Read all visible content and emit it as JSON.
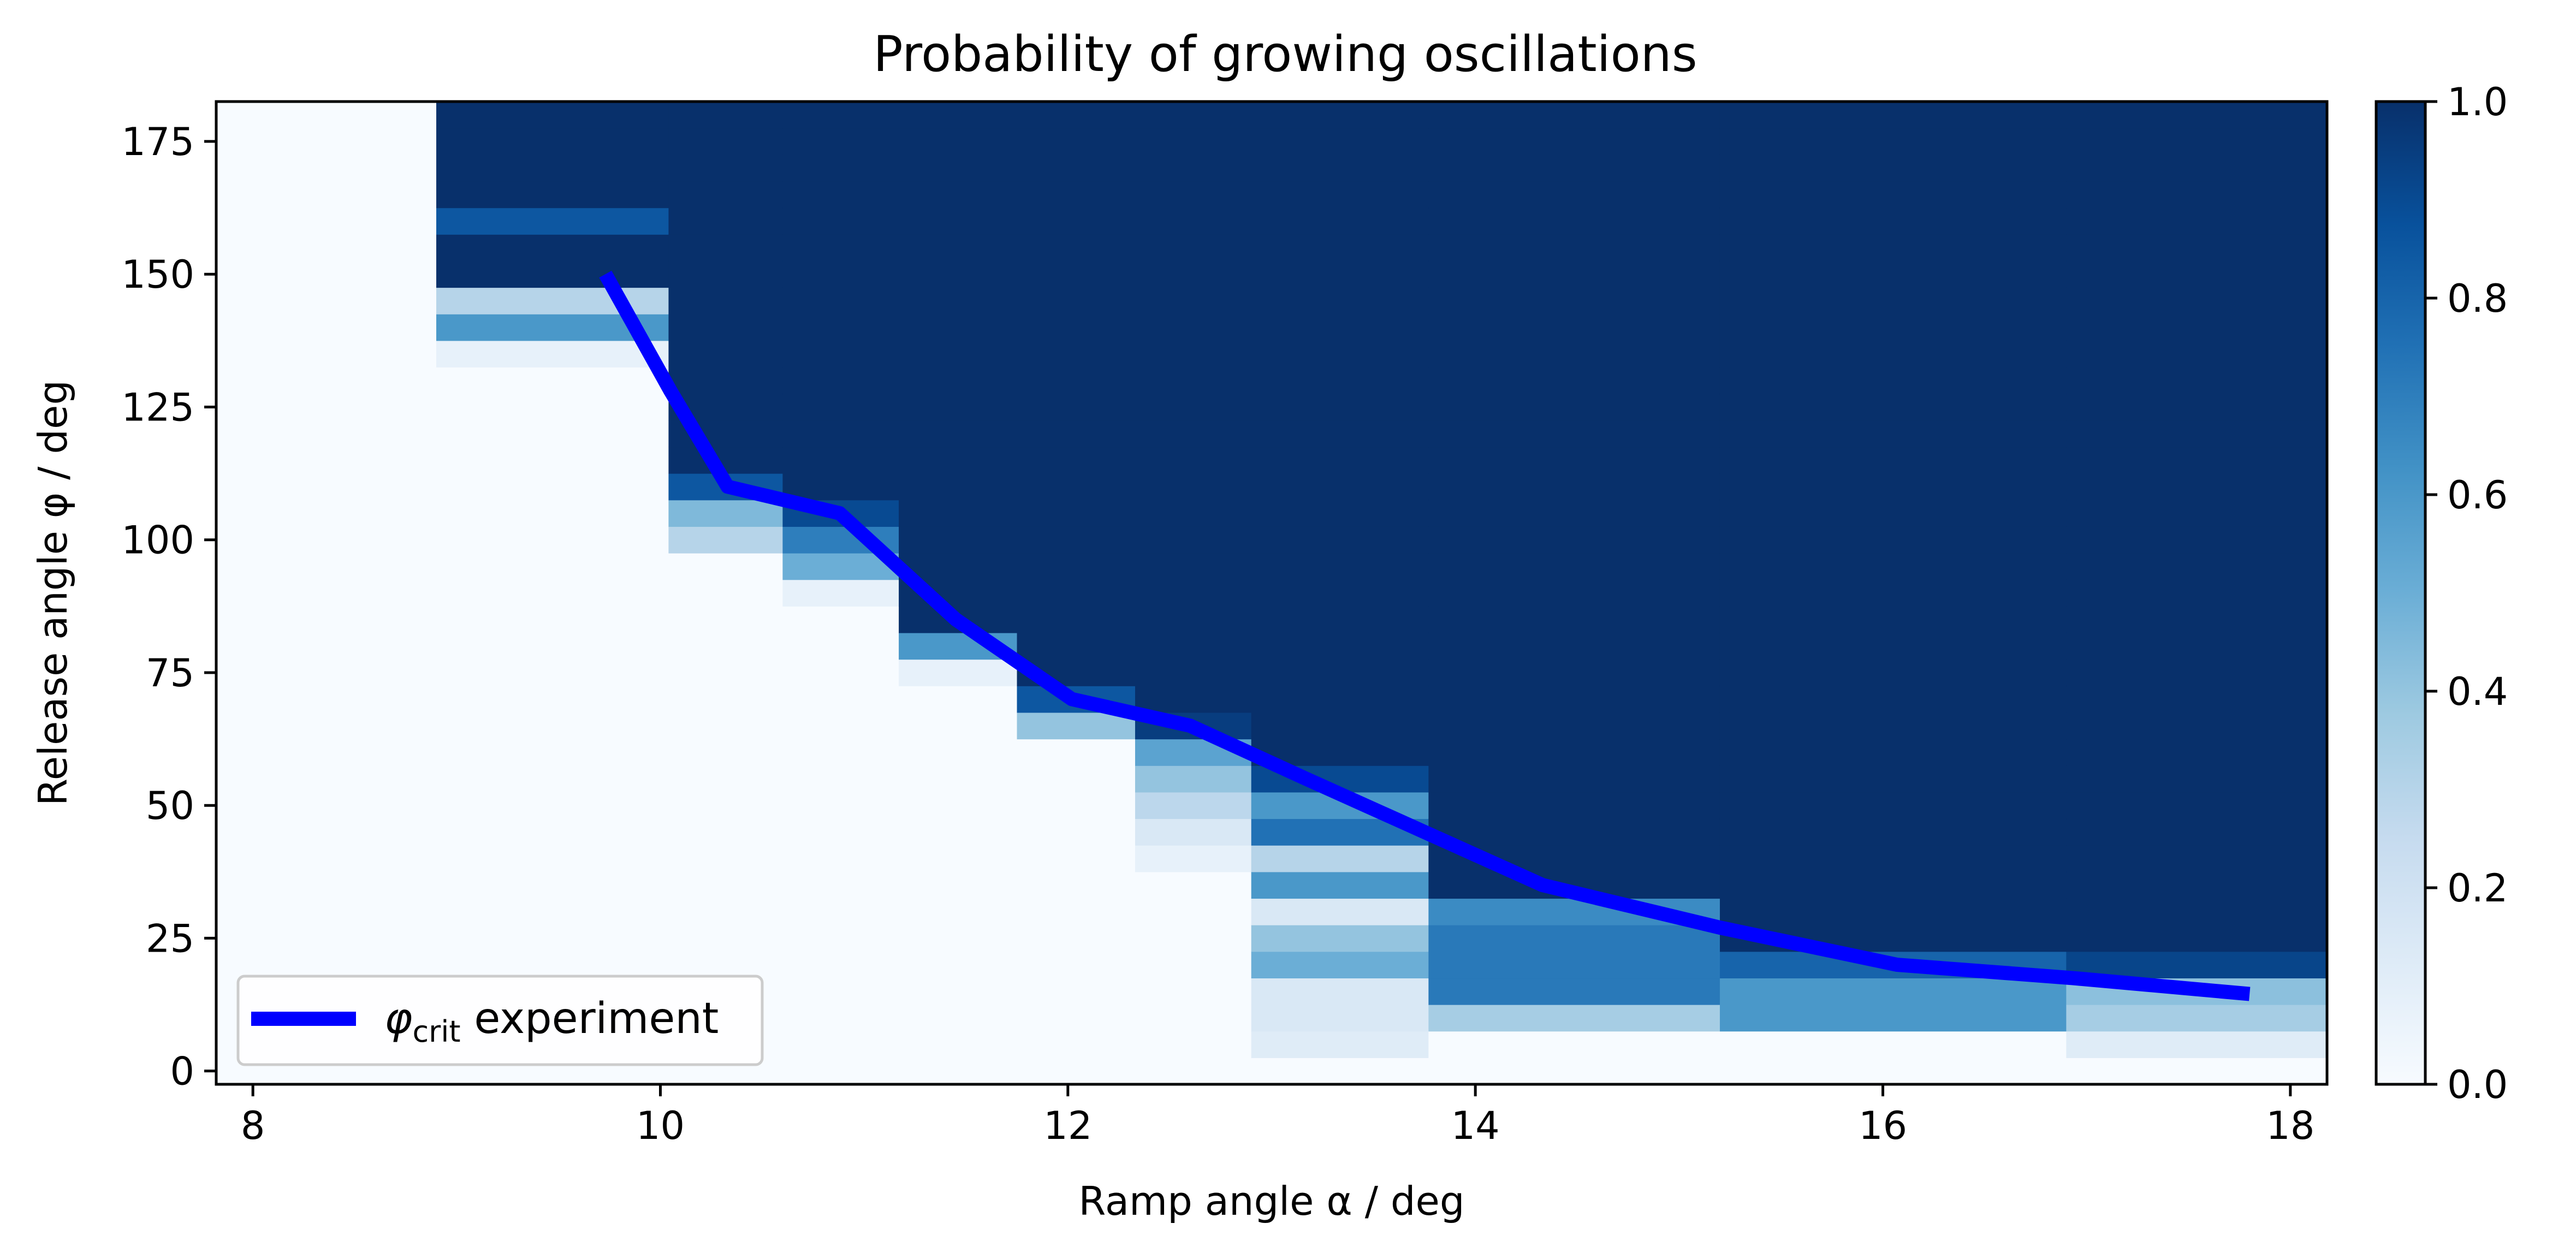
{
  "chart_data": {
    "type": "heatmap",
    "title": "Probability of growing oscillations",
    "xlabel": "Ramp angle α / deg",
    "ylabel": "Release angle φ / deg",
    "xlim": [
      7.82,
      18.18
    ],
    "ylim": [
      -2.5,
      182.5
    ],
    "x_ticks": [
      "8",
      "10",
      "12",
      "14",
      "16",
      "18"
    ],
    "y_ticks": [
      "0",
      "25",
      "50",
      "75",
      "100",
      "125",
      "150",
      "175"
    ],
    "colorbar": {
      "colormap": "Blues",
      "range": [
        0,
        1
      ],
      "ticks": [
        "0.0",
        "0.2",
        "0.4",
        "0.6",
        "0.8",
        "1.0"
      ],
      "colors": [
        "#f7fbff",
        "#deebf7",
        "#c6dbef",
        "#9ecae1",
        "#6baed6",
        "#4292c6",
        "#2171b5",
        "#08519c",
        "#08306b"
      ]
    },
    "row_height_deg": 5,
    "columns": [
      {
        "x0": 7.82,
        "x1": 8.9,
        "threshold": 182.5,
        "cells": {}
      },
      {
        "x0": 8.9,
        "x1": 10.04,
        "threshold": 132.5,
        "cells": {
          "135": 0.08,
          "140": 0.6,
          "145": 0.3,
          "160": 0.85
        }
      },
      {
        "x0": 10.04,
        "x1": 10.6,
        "threshold": 97.5,
        "cells": {
          "100": 0.3,
          "105": 0.45,
          "110": 0.85
        }
      },
      {
        "x0": 10.6,
        "x1": 11.17,
        "threshold": 87.5,
        "cells": {
          "90": 0.08,
          "95": 0.5,
          "100": 0.7,
          "105": 0.9
        }
      },
      {
        "x0": 11.17,
        "x1": 11.75,
        "threshold": 72.5,
        "cells": {
          "75": 0.08,
          "80": 0.6
        }
      },
      {
        "x0": 11.75,
        "x1": 12.33,
        "threshold": 62.5,
        "cells": {
          "65": 0.4,
          "70": 0.85
        }
      },
      {
        "x0": 12.33,
        "x1": 12.9,
        "threshold": 37.5,
        "cells": {
          "40": 0.08,
          "45": 0.15,
          "50": 0.28,
          "55": 0.4,
          "60": 0.55,
          "65": 0.95
        }
      },
      {
        "x0": 12.9,
        "x1": 13.77,
        "threshold": 2.5,
        "cells": {
          "5": 0.12,
          "10": 0.15,
          "15": 0.15,
          "20": 0.5,
          "25": 0.4,
          "30": 0.15,
          "35": 0.6,
          "40": 0.3,
          "45": 0.75,
          "50": 0.6,
          "55": 0.9
        }
      },
      {
        "x0": 13.77,
        "x1": 15.2,
        "threshold": 7.5,
        "cells": {
          "10": 0.35,
          "15": 0.72,
          "20": 0.72,
          "25": 0.72,
          "30": 0.65
        }
      },
      {
        "x0": 15.2,
        "x1": 16.9,
        "threshold": 7.5,
        "cells": {
          "10": 0.6,
          "15": 0.6,
          "20": 0.8
        }
      },
      {
        "x0": 16.9,
        "x1": 18.18,
        "threshold": 2.5,
        "cells": {
          "5": 0.12,
          "10": 0.35,
          "15": 0.42,
          "20": 0.92
        }
      }
    ],
    "series": [
      {
        "name": "φcrit experiment",
        "color": "#0000ff",
        "x": [
          9.73,
          10.05,
          10.33,
          10.88,
          11.45,
          12.02,
          12.6,
          13.17,
          13.75,
          14.33,
          15.2,
          16.07,
          16.93,
          17.8
        ],
        "y": [
          150,
          128,
          110,
          105,
          85,
          70,
          65,
          55,
          45,
          35,
          27,
          20,
          17.5,
          14.5
        ]
      }
    ],
    "legend": {
      "position": "lower-left",
      "symbol": "φ",
      "subscript": "crit",
      "text": " experiment"
    }
  }
}
